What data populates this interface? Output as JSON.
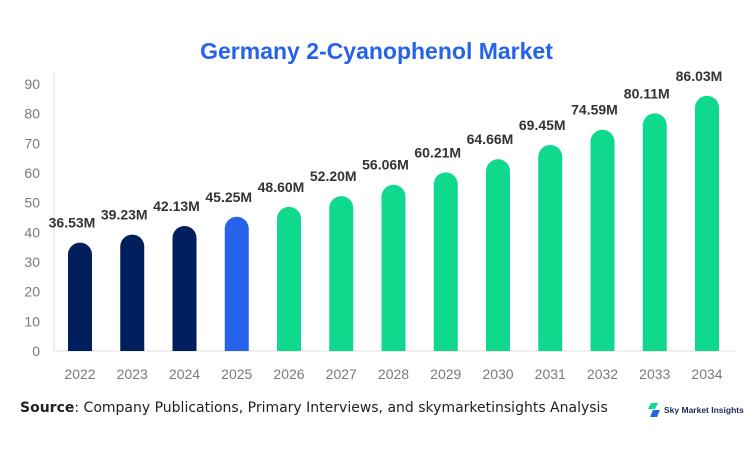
{
  "chart_data": {
    "type": "bar",
    "title": "Germany 2-Cyanophenol Market",
    "categories": [
      "2022",
      "2023",
      "2024",
      "2025",
      "2026",
      "2027",
      "2028",
      "2029",
      "2030",
      "2031",
      "2032",
      "2033",
      "2034"
    ],
    "values": [
      36.53,
      39.23,
      42.13,
      45.25,
      48.6,
      52.2,
      56.06,
      60.21,
      64.66,
      69.45,
      74.59,
      80.11,
      86.03
    ],
    "data_labels": [
      "36.53M",
      "39.23M",
      "42.13M",
      "45.25M",
      "48.60M",
      "52.20M",
      "56.06M",
      "60.21M",
      "64.66M",
      "69.45M",
      "74.59M",
      "80.11M",
      "86.03M"
    ],
    "bar_colors": [
      "#001f5c",
      "#001f5c",
      "#001f5c",
      "#2563eb",
      "#0fd98c",
      "#0fd98c",
      "#0fd98c",
      "#0fd98c",
      "#0fd98c",
      "#0fd98c",
      "#0fd98c",
      "#0fd98c",
      "#0fd98c"
    ],
    "ylim": [
      0,
      90
    ],
    "yticks": [
      0,
      10,
      20,
      30,
      40,
      50,
      60,
      70,
      80,
      90
    ],
    "xlabel": "",
    "ylabel": "",
    "grid": false,
    "legend": "none"
  },
  "footer": {
    "source_label": "Source",
    "source_text": ": Company Publications, Primary Interviews, and skymarketinsights Analysis",
    "logo_text": "Sky Market Insights"
  }
}
